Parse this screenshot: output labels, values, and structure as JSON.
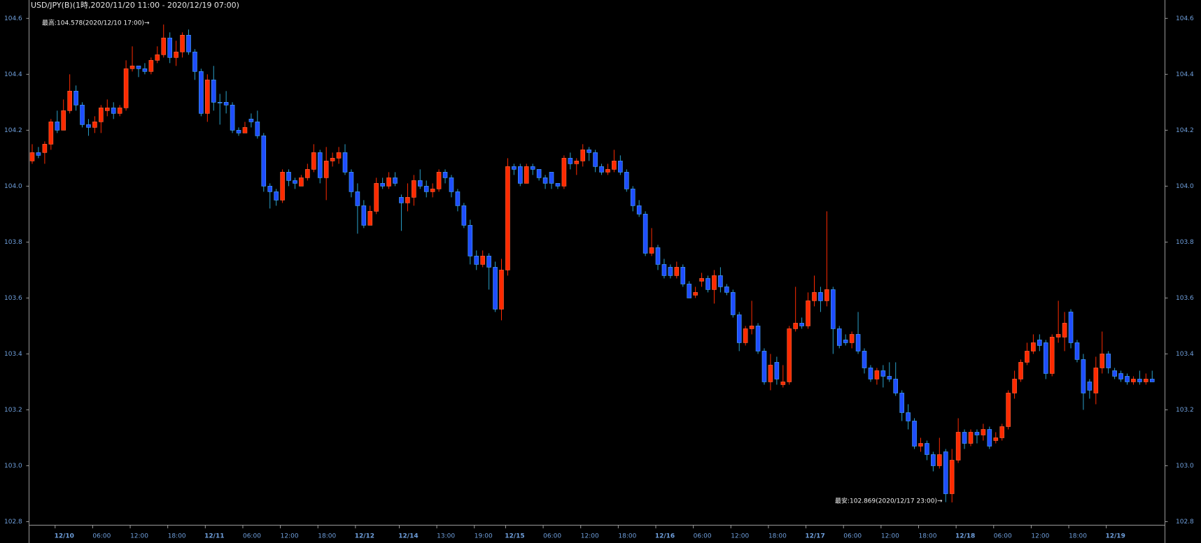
{
  "chart_data": {
    "type": "candlestick",
    "title": "USD/JPY(B)(1時,2020/11/20 11:00 - 2020/12/19 07:00)",
    "annotations": [
      "最高:104.578(2020/12/10 17:00)→",
      "最安:102.869(2020/12/17 23:00)→"
    ],
    "up_color": "#ff2a00",
    "down_color": "#1f4dff",
    "ylim": [
      102.8,
      104.6
    ],
    "yticks": [
      {
        "value": 102.8,
        "label": "102.8"
      },
      {
        "value": 103,
        "label": "103.0"
      },
      103.2,
      103.4,
      103.6,
      103.8,
      {
        "value": 104,
        "label": "104.0"
      },
      104.2,
      104.4,
      104.6
    ],
    "categories": [
      null,
      null,
      null,
      null,
      "12/10",
      null,
      null,
      null,
      null,
      null,
      "06:00",
      null,
      null,
      null,
      null,
      null,
      "12:00",
      null,
      null,
      null,
      null,
      null,
      "18:00",
      null,
      null,
      null,
      null,
      null,
      "12/11",
      null,
      null,
      null,
      null,
      null,
      "06:00",
      null,
      null,
      null,
      null,
      null,
      "12:00",
      null,
      null,
      null,
      null,
      null,
      "18:00",
      null,
      null,
      null,
      null,
      null,
      "12/12",
      null,
      null,
      null,
      null,
      null,
      null,
      "12/14",
      null,
      null,
      null,
      null,
      null,
      "13:00",
      null,
      null,
      null,
      null,
      null,
      "19:00",
      null,
      null,
      null,
      null,
      "12/15",
      null,
      null,
      null,
      null,
      null,
      "06:00",
      null,
      null,
      null,
      null,
      null,
      "12:00",
      null,
      null,
      null,
      null,
      null,
      "18:00",
      null,
      null,
      null,
      null,
      null,
      "12/16",
      null,
      null,
      null,
      null,
      null,
      "06:00",
      null,
      null,
      null,
      null,
      null,
      "12:00",
      null,
      null,
      null,
      null,
      null,
      "18:00",
      null,
      null,
      null,
      null,
      null,
      "12/17",
      null,
      null,
      null,
      null,
      null,
      "06:00",
      null,
      null,
      null,
      null,
      null,
      "12:00",
      null,
      null,
      null,
      null,
      null,
      "18:00",
      null,
      null,
      null,
      null,
      null,
      "12/18",
      null,
      null,
      null,
      null,
      null,
      "06:00",
      null,
      null,
      null,
      null,
      null,
      "12:00",
      null,
      null,
      null,
      null,
      null,
      "18:00",
      null,
      null,
      null,
      null,
      null,
      "12/19",
      null,
      null,
      null,
      null,
      null,
      null,
      null
    ],
    "open": [
      104.09,
      104.12,
      104.12,
      104.15,
      104.23,
      104.2,
      104.27,
      104.34,
      104.29,
      104.22,
      104.21,
      104.23,
      104.27,
      104.28,
      104.26,
      104.28,
      104.42,
      104.43,
      104.42,
      104.41,
      104.45,
      104.47,
      104.53,
      104.46,
      104.48,
      104.54,
      104.48,
      104.41,
      104.26,
      104.38,
      104.3,
      104.3,
      104.29,
      104.2,
      104.19,
      104.24,
      104.23,
      104.18,
      104.0,
      103.98,
      103.95,
      104.05,
      104.02,
      104.0,
      104.03,
      104.06,
      104.12,
      104.03,
      104.09,
      104.1,
      104.12,
      104.05,
      103.98,
      103.93,
      103.86,
      103.91,
      104.01,
      104.0,
      104.03,
      103.96,
      103.94,
      103.96,
      104.02,
      104.0,
      103.98,
      103.99,
      104.05,
      104.03,
      103.98,
      103.93,
      103.86,
      103.75,
      103.72,
      103.75,
      103.71,
      103.56,
      103.7,
      104.07,
      104.07,
      104.01,
      104.07,
      104.06,
      104.03,
      104.05,
      104.01,
      104.0,
      104.1,
      104.08,
      104.09,
      104.13,
      104.12,
      104.07,
      104.05,
      104.06,
      104.09,
      104.05,
      103.99,
      103.93,
      103.9,
      103.76,
      103.78,
      103.72,
      103.71,
      103.68,
      103.71,
      103.65,
      103.61,
      103.66,
      103.67,
      103.63,
      103.68,
      103.64,
      103.62,
      103.54,
      103.44,
      103.49,
      103.5,
      103.41,
      103.3,
      103.37,
      103.29,
      103.3,
      103.49,
      103.51,
      103.5,
      103.59,
      103.62,
      103.59,
      103.63,
      103.49,
      103.45,
      103.44,
      103.47,
      103.41,
      103.35,
      103.31,
      103.34,
      103.32,
      103.31,
      103.26,
      103.19,
      103.16,
      103.07,
      103.08,
      103.04,
      103.0,
      103.05,
      102.9,
      103.02,
      103.12,
      103.08,
      103.12,
      103.11,
      103.13,
      103.09,
      103.1,
      103.14,
      103.26,
      103.31,
      103.37,
      103.41,
      103.45,
      103.44,
      103.33,
      103.46,
      103.46,
      103.55,
      103.44,
      103.38,
      103.3,
      103.26,
      103.35,
      103.4,
      103.34,
      103.33,
      103.32,
      103.3,
      103.31,
      103.3,
      103.31
    ],
    "high": [
      104.15,
      104.14,
      104.16,
      104.24,
      104.27,
      104.31,
      104.4,
      104.36,
      104.3,
      104.24,
      104.25,
      104.29,
      104.31,
      104.3,
      104.29,
      104.45,
      104.5,
      104.43,
      104.44,
      104.46,
      104.5,
      104.578,
      104.55,
      104.52,
      104.55,
      104.56,
      104.49,
      104.42,
      104.4,
      104.43,
      104.33,
      104.34,
      104.3,
      104.21,
      104.23,
      104.26,
      104.27,
      104.19,
      104.01,
      103.99,
      104.06,
      104.06,
      104.03,
      104.04,
      104.08,
      104.15,
      104.13,
      104.14,
      104.12,
      104.14,
      104.15,
      104.06,
      104.01,
      103.95,
      103.93,
      104.03,
      104.03,
      104.05,
      104.05,
      103.97,
      104.01,
      104.04,
      104.06,
      104.02,
      104.01,
      104.06,
      104.06,
      104.04,
      103.99,
      103.94,
      103.88,
      103.77,
      103.77,
      103.76,
      103.73,
      103.74,
      104.1,
      104.08,
      104.08,
      104.08,
      104.08,
      104.06,
      104.04,
      104.05,
      104.01,
      104.11,
      104.12,
      104.1,
      104.15,
      104.14,
      104.13,
      104.08,
      104.08,
      104.13,
      104.11,
      104.06,
      104.0,
      103.95,
      103.91,
      103.85,
      103.79,
      103.74,
      103.72,
      103.73,
      103.72,
      103.66,
      103.64,
      103.69,
      103.68,
      103.7,
      103.71,
      103.65,
      103.63,
      103.55,
      103.5,
      103.59,
      103.51,
      103.42,
      103.4,
      103.39,
      103.36,
      103.5,
      103.64,
      103.53,
      103.62,
      103.68,
      103.64,
      103.91,
      103.64,
      103.5,
      103.47,
      103.48,
      103.55,
      103.42,
      103.36,
      103.35,
      103.36,
      103.37,
      103.37,
      103.27,
      103.22,
      103.17,
      103.1,
      103.09,
      103.05,
      103.1,
      103.06,
      103.06,
      103.17,
      103.13,
      103.13,
      103.13,
      103.15,
      103.14,
      103.12,
      103.15,
      103.27,
      103.34,
      103.38,
      103.44,
      103.47,
      103.47,
      103.45,
      103.47,
      103.59,
      103.55,
      103.56,
      103.45,
      103.4,
      103.31,
      103.39,
      103.48,
      103.41,
      103.35,
      103.34,
      103.33,
      103.32,
      103.34,
      103.33,
      103.34
    ],
    "low": [
      104.08,
      104.1,
      104.08,
      104.13,
      104.19,
      104.2,
      104.26,
      104.27,
      104.21,
      104.18,
      104.19,
      104.19,
      104.25,
      104.24,
      104.25,
      104.27,
      104.41,
      104.39,
      104.4,
      104.4,
      104.44,
      104.46,
      104.44,
      104.43,
      104.46,
      104.47,
      104.38,
      104.25,
      104.23,
      104.27,
      104.22,
      104.26,
      104.19,
      104.18,
      104.19,
      104.21,
      104.17,
      103.98,
      103.92,
      103.93,
      103.94,
      104.0,
      103.99,
      104.0,
      104.02,
      104.05,
      104.01,
      103.95,
      104.07,
      104.08,
      104.04,
      103.96,
      103.83,
      103.85,
      103.86,
      103.9,
      103.99,
      103.99,
      104.0,
      103.84,
      103.91,
      103.93,
      103.99,
      103.96,
      103.96,
      103.98,
      104.01,
      103.96,
      103.91,
      103.85,
      103.72,
      103.7,
      103.71,
      103.63,
      103.55,
      103.52,
      103.68,
      104.04,
      104.0,
      104.01,
      104.04,
      104.02,
      103.99,
      103.99,
      103.99,
      103.99,
      104.06,
      104.04,
      104.07,
      104.09,
      104.05,
      104.04,
      104.04,
      104.05,
      104.04,
      103.98,
      103.91,
      103.89,
      103.75,
      103.75,
      103.7,
      103.67,
      103.67,
      103.67,
      103.64,
      103.6,
      103.6,
      103.64,
      103.62,
      103.58,
      103.62,
      103.61,
      103.53,
      103.41,
      103.43,
      103.47,
      103.4,
      103.29,
      103.27,
      103.29,
      103.28,
      103.29,
      103.48,
      103.49,
      103.49,
      103.57,
      103.55,
      103.57,
      103.4,
      103.42,
      103.43,
      103.42,
      103.4,
      103.33,
      103.3,
      103.29,
      103.28,
      103.3,
      103.25,
      103.16,
      103.13,
      103.06,
      103.05,
      103.02,
      102.98,
      102.99,
      102.87,
      102.869,
      103.01,
      103.06,
      103.07,
      103.08,
      103.09,
      103.06,
      103.08,
      103.09,
      103.13,
      103.24,
      103.3,
      103.36,
      103.4,
      103.41,
      103.31,
      103.32,
      103.44,
      103.41,
      103.42,
      103.37,
      103.2,
      103.24,
      103.22,
      103.33,
      103.33,
      103.31,
      103.3,
      103.29,
      103.29,
      103.29,
      103.29,
      103.3
    ],
    "close": [
      104.12,
      104.11,
      104.15,
      104.23,
      104.2,
      104.27,
      104.34,
      104.29,
      104.22,
      104.21,
      104.23,
      104.28,
      104.28,
      104.26,
      104.28,
      104.42,
      104.43,
      104.42,
      104.41,
      104.45,
      104.47,
      104.53,
      104.46,
      104.48,
      104.54,
      104.48,
      104.41,
      104.26,
      104.38,
      104.3,
      104.3,
      104.29,
      104.2,
      104.19,
      104.21,
      104.23,
      104.18,
      104.0,
      103.98,
      103.95,
      104.05,
      104.02,
      104.01,
      104.03,
      104.06,
      104.12,
      104.03,
      104.09,
      104.1,
      104.12,
      104.05,
      103.98,
      103.93,
      103.86,
      103.91,
      104.01,
      104.0,
      104.03,
      104.01,
      103.94,
      103.96,
      104.02,
      104.0,
      103.98,
      103.99,
      104.05,
      104.03,
      103.98,
      103.93,
      103.86,
      103.75,
      103.72,
      103.75,
      103.71,
      103.56,
      103.7,
      104.07,
      104.06,
      104.01,
      104.07,
      104.06,
      104.03,
      104.01,
      104.01,
      104.0,
      104.1,
      104.08,
      104.09,
      104.13,
      104.12,
      104.07,
      104.05,
      104.06,
      104.09,
      104.05,
      103.99,
      103.93,
      103.9,
      103.76,
      103.78,
      103.72,
      103.68,
      103.68,
      103.71,
      103.65,
      103.6,
      103.62,
      103.67,
      103.63,
      103.68,
      103.64,
      103.62,
      103.54,
      103.44,
      103.49,
      103.5,
      103.41,
      103.3,
      103.36,
      103.31,
      103.3,
      103.49,
      103.51,
      103.5,
      103.59,
      103.62,
      103.59,
      103.63,
      103.49,
      103.43,
      103.44,
      103.47,
      103.41,
      103.35,
      103.31,
      103.34,
      103.32,
      103.31,
      103.26,
      103.19,
      103.16,
      103.07,
      103.08,
      103.04,
      103.0,
      103.04,
      102.9,
      103.02,
      103.12,
      103.08,
      103.12,
      103.11,
      103.13,
      103.07,
      103.1,
      103.14,
      103.26,
      103.31,
      103.37,
      103.41,
      103.44,
      103.43,
      103.33,
      103.46,
      103.47,
      103.51,
      103.44,
      103.38,
      103.26,
      103.27,
      103.35,
      103.4,
      103.35,
      103.32,
      103.31,
      103.3,
      103.31,
      103.3,
      103.31,
      103.3
    ]
  }
}
